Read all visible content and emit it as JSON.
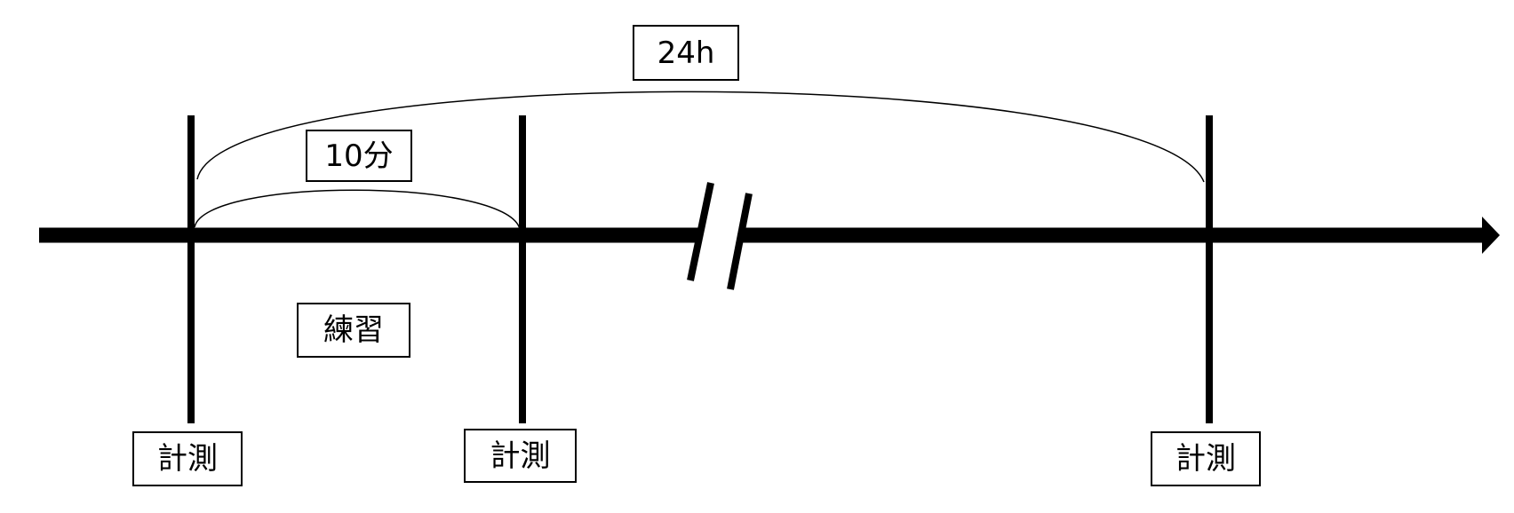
{
  "diagram": {
    "interval_long_label": "24h",
    "interval_short_label": "10分",
    "activity_label": "練習",
    "measurements": [
      {
        "label": "計測"
      },
      {
        "label": "計測"
      },
      {
        "label": "計測"
      }
    ],
    "colors": {
      "line": "#000000",
      "background": "#ffffff"
    }
  }
}
